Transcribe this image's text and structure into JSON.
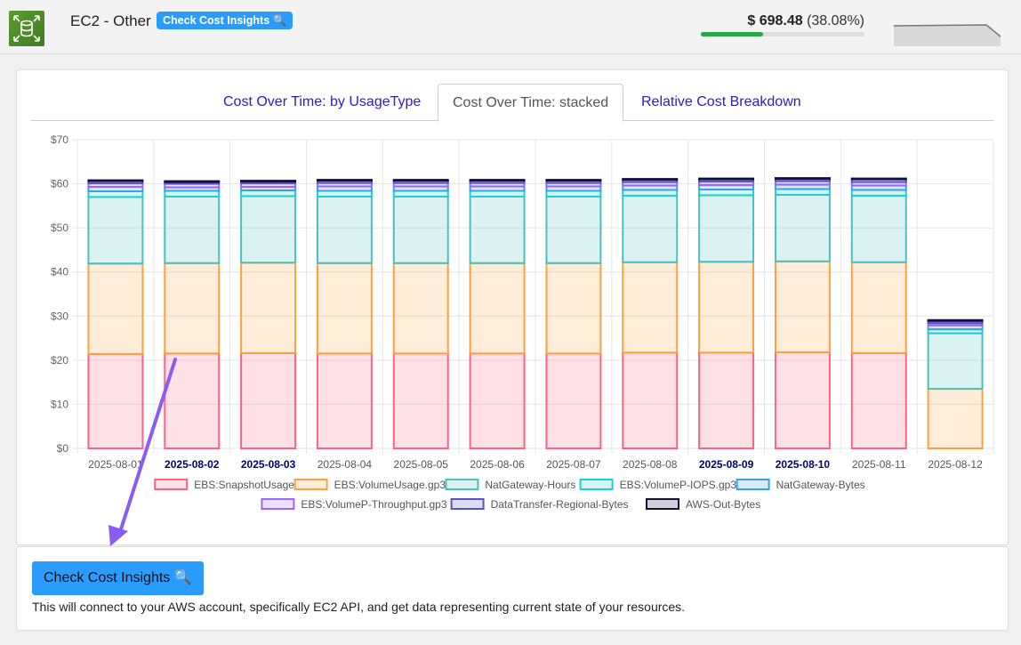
{
  "header": {
    "service_name": "EC2 - Other",
    "insights_badge": "Check Cost Insights 🔍",
    "cost_value": "$ 698.48",
    "cost_percent": "(38.08%)",
    "cost_share_fraction": 0.3808,
    "icon": "ec2-storage-icon"
  },
  "tabs": [
    {
      "label": "Cost Over Time: by UsageType",
      "active": false
    },
    {
      "label": "Cost Over Time: stacked",
      "active": true
    },
    {
      "label": "Relative Cost Breakdown",
      "active": false
    }
  ],
  "chart_data": {
    "type": "bar",
    "stacked": true,
    "ylim": [
      0,
      70
    ],
    "yticks": [
      "$0",
      "$10",
      "$20",
      "$30",
      "$40",
      "$50",
      "$60",
      "$70"
    ],
    "categories": [
      "2025-08-01",
      "2025-08-02",
      "2025-08-03",
      "2025-08-04",
      "2025-08-05",
      "2025-08-06",
      "2025-08-07",
      "2025-08-08",
      "2025-08-09",
      "2025-08-10",
      "2025-08-11",
      "2025-08-12"
    ],
    "highlighted_categories": [
      "2025-08-02",
      "2025-08-03",
      "2025-08-09",
      "2025-08-10"
    ],
    "grid": true,
    "legend_position": "bottom",
    "series": [
      {
        "name": "EBS:SnapshotUsage",
        "color": "#ff6384",
        "values": [
          21.4,
          21.5,
          21.6,
          21.5,
          21.5,
          21.5,
          21.5,
          21.7,
          21.7,
          21.8,
          21.6,
          0
        ]
      },
      {
        "name": "EBS:VolumeUsage.gp3",
        "color": "#ff9f40",
        "values": [
          20.5,
          20.5,
          20.5,
          20.5,
          20.5,
          20.5,
          20.5,
          20.5,
          20.6,
          20.6,
          20.6,
          13.5
        ]
      },
      {
        "name": "NatGateway-Hours",
        "color": "#4bc0c0",
        "values": [
          15.1,
          15.1,
          15.1,
          15.1,
          15.1,
          15.1,
          15.1,
          15.1,
          15.1,
          15.1,
          15.1,
          12.6
        ]
      },
      {
        "name": "EBS:VolumeP-IOPS.gp3",
        "color": "#22cfcf",
        "values": [
          1.3,
          1.3,
          1.3,
          1.3,
          1.3,
          1.3,
          1.3,
          1.3,
          1.3,
          1.3,
          1.3,
          0.9
        ]
      },
      {
        "name": "NatGateway-Bytes",
        "color": "#36a2eb",
        "values": [
          1.0,
          0.8,
          0.8,
          1.0,
          1.0,
          1.0,
          1.0,
          1.0,
          1.0,
          1.0,
          1.0,
          0.9
        ]
      },
      {
        "name": "EBS:VolumeP-Throughput.gp3",
        "color": "#9966ff",
        "values": [
          0.8,
          0.8,
          0.8,
          0.8,
          0.8,
          0.8,
          0.8,
          0.8,
          0.8,
          0.8,
          0.8,
          0.5
        ]
      },
      {
        "name": "DataTransfer-Regional-Bytes",
        "color": "#5a4fcf",
        "values": [
          0.5,
          0.4,
          0.4,
          0.5,
          0.5,
          0.5,
          0.5,
          0.5,
          0.5,
          0.5,
          0.6,
          0.5
        ]
      },
      {
        "name": "AWS-Out-Bytes",
        "color": "#12103a",
        "values": [
          0.2,
          0.2,
          0.2,
          0.2,
          0.2,
          0.2,
          0.2,
          0.2,
          0.2,
          0.2,
          0.2,
          0.2
        ]
      }
    ]
  },
  "bottom": {
    "button_label": "Check Cost Insights 🔍",
    "note": "This will connect to your AWS account, specifically EC2 API, and get data representing current state of your resources."
  }
}
